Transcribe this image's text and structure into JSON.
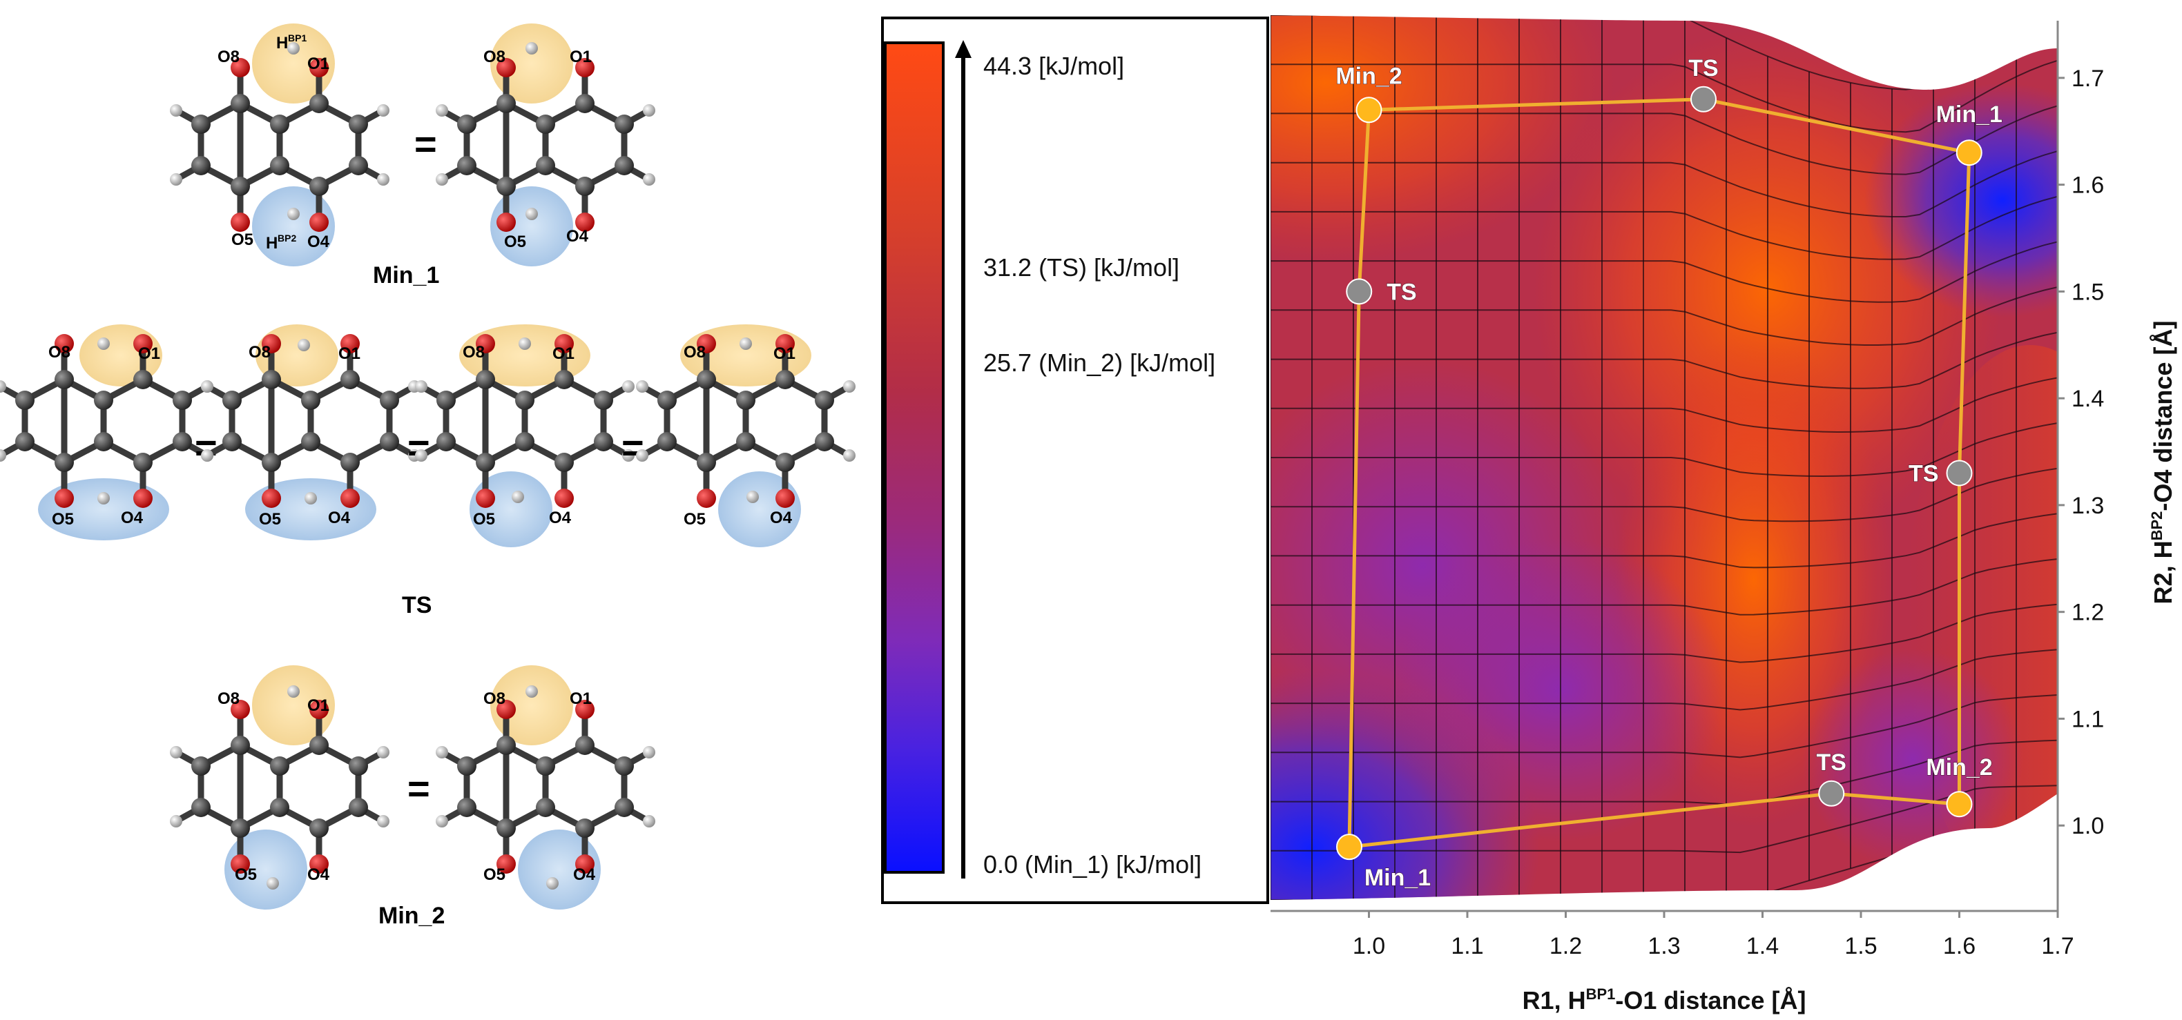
{
  "molecules": {
    "states": [
      {
        "name": "Min_1",
        "equals": "="
      },
      {
        "name": "TS",
        "equals": "="
      },
      {
        "name": "Min_2",
        "equals": "="
      }
    ],
    "atom_labels": {
      "o8": "O8",
      "o1": "O1",
      "o5": "O5",
      "o4": "O4",
      "h1": "H",
      "h1_sup": "BP1",
      "h2": "H",
      "h2_sup": "BP2"
    }
  },
  "legend": {
    "colors": {
      "top": "#ff4a14",
      "mid": "#9b2a7c",
      "bottom": "#0a10ff"
    },
    "labels": [
      {
        "id": "max",
        "text": "44.3 [kJ/mol]",
        "value": 44.3
      },
      {
        "id": "ts",
        "text": "31.2 (TS) [kJ/mol]",
        "value": 31.2
      },
      {
        "id": "min2",
        "text": "25.7 (Min_2) [kJ/mol]",
        "value": 25.7
      },
      {
        "id": "min1",
        "text": "0.0 (Min_1) [kJ/mol]",
        "value": 0.0
      }
    ]
  },
  "chart_data": {
    "type": "heatmap",
    "title": "",
    "xlabel": "R1, H",
    "xlabel_sup": "BP1",
    "xlabel_tail": "-O1 distance [Å]",
    "ylabel": "R2, H",
    "ylabel_sup": "BP2",
    "ylabel_tail": "-O4 distance [Å]",
    "xlim": [
      0.9,
      1.7
    ],
    "ylim": [
      0.92,
      1.76
    ],
    "x_ticks": [
      "1.0",
      "1.1",
      "1.2",
      "1.3",
      "1.4",
      "1.5",
      "1.6",
      "1.7"
    ],
    "x_tick_values": [
      1.0,
      1.1,
      1.2,
      1.3,
      1.4,
      1.5,
      1.6,
      1.7
    ],
    "y_ticks": [
      "1.0",
      "1.1",
      "1.2",
      "1.3",
      "1.4",
      "1.5",
      "1.6",
      "1.7"
    ],
    "y_tick_values": [
      1.0,
      1.1,
      1.2,
      1.3,
      1.4,
      1.5,
      1.6,
      1.7
    ],
    "energy_range_kJmol": [
      0.0,
      44.3
    ],
    "path_points": [
      {
        "label": "Min_2",
        "x": 1.0,
        "y": 1.67,
        "kind": "min"
      },
      {
        "label": "TS",
        "x": 1.34,
        "y": 1.68,
        "kind": "ts"
      },
      {
        "label": "Min_1",
        "x": 1.61,
        "y": 1.63,
        "kind": "min"
      },
      {
        "label": "TS",
        "x": 1.6,
        "y": 1.33,
        "kind": "ts"
      },
      {
        "label": "Min_2",
        "x": 1.6,
        "y": 1.02,
        "kind": "min"
      },
      {
        "label": "TS",
        "x": 1.47,
        "y": 1.03,
        "kind": "ts"
      },
      {
        "label": "Min_1",
        "x": 0.98,
        "y": 0.98,
        "kind": "min"
      },
      {
        "label": "TS",
        "x": 0.99,
        "y": 1.5,
        "kind": "ts"
      }
    ],
    "marker_colors": {
      "min": "#ffb81c",
      "ts": "#8c8c8c",
      "path": "#f0b030"
    }
  }
}
